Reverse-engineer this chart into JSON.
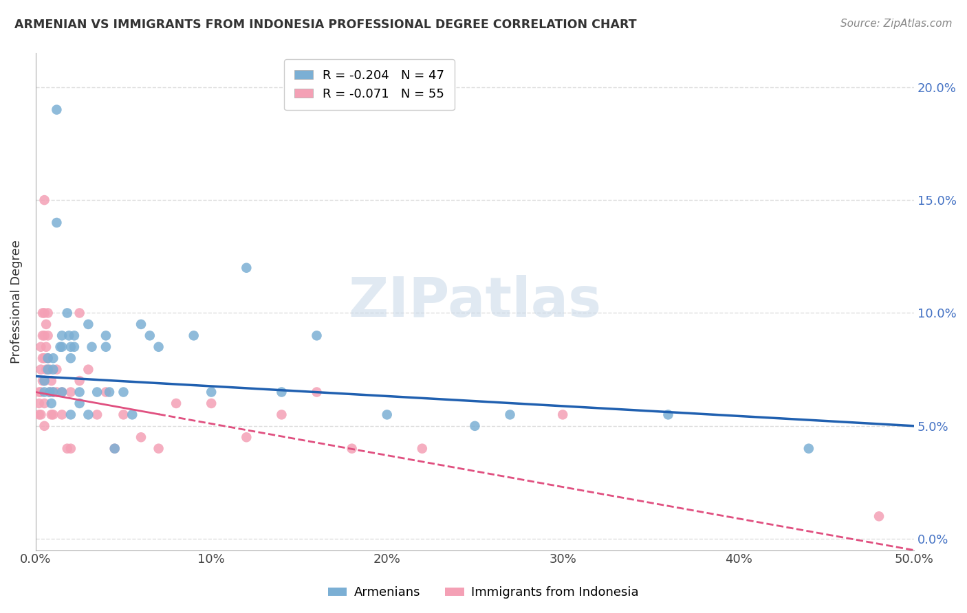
{
  "title": "ARMENIAN VS IMMIGRANTS FROM INDONESIA PROFESSIONAL DEGREE CORRELATION CHART",
  "source": "Source: ZipAtlas.com",
  "ylabel": "Professional Degree",
  "xlabel": "",
  "xlim": [
    0,
    0.5
  ],
  "ylim": [
    -0.005,
    0.215
  ],
  "xticks": [
    0.0,
    0.1,
    0.2,
    0.3,
    0.4,
    0.5
  ],
  "xtick_labels": [
    "0.0%",
    "10%",
    "20%",
    "30%",
    "40%",
    "50.0%"
  ],
  "yticks": [
    0.0,
    0.05,
    0.1,
    0.15,
    0.2
  ],
  "ytick_labels_right": [
    "0.0%",
    "5.0%",
    "10.0%",
    "15.0%",
    "20.0%"
  ],
  "background_color": "#ffffff",
  "grid_color": "#dddddd",
  "watermark_text": "ZIPatlas",
  "blue_R": -0.204,
  "blue_N": 47,
  "pink_R": -0.071,
  "pink_N": 55,
  "blue_color": "#7bafd4",
  "pink_color": "#f4a0b5",
  "blue_line_color": "#2060b0",
  "pink_line_color": "#e05080",
  "legend_label_blue": "Armenians",
  "legend_label_pink": "Immigrants from Indonesia",
  "armenians_x": [
    0.005,
    0.005,
    0.007,
    0.007,
    0.008,
    0.009,
    0.01,
    0.01,
    0.01,
    0.012,
    0.012,
    0.014,
    0.015,
    0.015,
    0.015,
    0.018,
    0.019,
    0.02,
    0.02,
    0.02,
    0.022,
    0.022,
    0.025,
    0.025,
    0.03,
    0.03,
    0.032,
    0.035,
    0.04,
    0.04,
    0.042,
    0.045,
    0.05,
    0.055,
    0.06,
    0.065,
    0.07,
    0.09,
    0.1,
    0.12,
    0.14,
    0.16,
    0.2,
    0.25,
    0.27,
    0.36,
    0.44
  ],
  "armenians_y": [
    0.07,
    0.065,
    0.08,
    0.075,
    0.065,
    0.06,
    0.08,
    0.075,
    0.065,
    0.19,
    0.14,
    0.085,
    0.09,
    0.085,
    0.065,
    0.1,
    0.09,
    0.085,
    0.08,
    0.055,
    0.09,
    0.085,
    0.065,
    0.06,
    0.095,
    0.055,
    0.085,
    0.065,
    0.09,
    0.085,
    0.065,
    0.04,
    0.065,
    0.055,
    0.095,
    0.09,
    0.085,
    0.09,
    0.065,
    0.12,
    0.065,
    0.09,
    0.055,
    0.05,
    0.055,
    0.055,
    0.04
  ],
  "indonesia_x": [
    0.002,
    0.002,
    0.002,
    0.003,
    0.003,
    0.003,
    0.003,
    0.004,
    0.004,
    0.004,
    0.004,
    0.005,
    0.005,
    0.005,
    0.005,
    0.005,
    0.005,
    0.005,
    0.006,
    0.006,
    0.006,
    0.007,
    0.007,
    0.007,
    0.008,
    0.008,
    0.009,
    0.009,
    0.01,
    0.01,
    0.012,
    0.012,
    0.015,
    0.015,
    0.018,
    0.02,
    0.02,
    0.025,
    0.025,
    0.03,
    0.035,
    0.04,
    0.045,
    0.05,
    0.06,
    0.07,
    0.08,
    0.1,
    0.12,
    0.14,
    0.16,
    0.18,
    0.22,
    0.3,
    0.48
  ],
  "indonesia_y": [
    0.065,
    0.06,
    0.055,
    0.085,
    0.075,
    0.065,
    0.055,
    0.1,
    0.09,
    0.08,
    0.07,
    0.15,
    0.1,
    0.09,
    0.08,
    0.07,
    0.06,
    0.05,
    0.095,
    0.085,
    0.075,
    0.1,
    0.09,
    0.08,
    0.075,
    0.065,
    0.07,
    0.055,
    0.065,
    0.055,
    0.075,
    0.065,
    0.065,
    0.055,
    0.04,
    0.065,
    0.04,
    0.1,
    0.07,
    0.075,
    0.055,
    0.065,
    0.04,
    0.055,
    0.045,
    0.04,
    0.06,
    0.06,
    0.045,
    0.055,
    0.065,
    0.04,
    0.04,
    0.055,
    0.01
  ],
  "blue_line_x0": 0.0,
  "blue_line_y0": 0.072,
  "blue_line_x1": 0.5,
  "blue_line_y1": 0.05,
  "pink_line_x0": 0.0,
  "pink_line_y0": 0.065,
  "pink_line_x1": 0.5,
  "pink_line_y1": -0.005
}
